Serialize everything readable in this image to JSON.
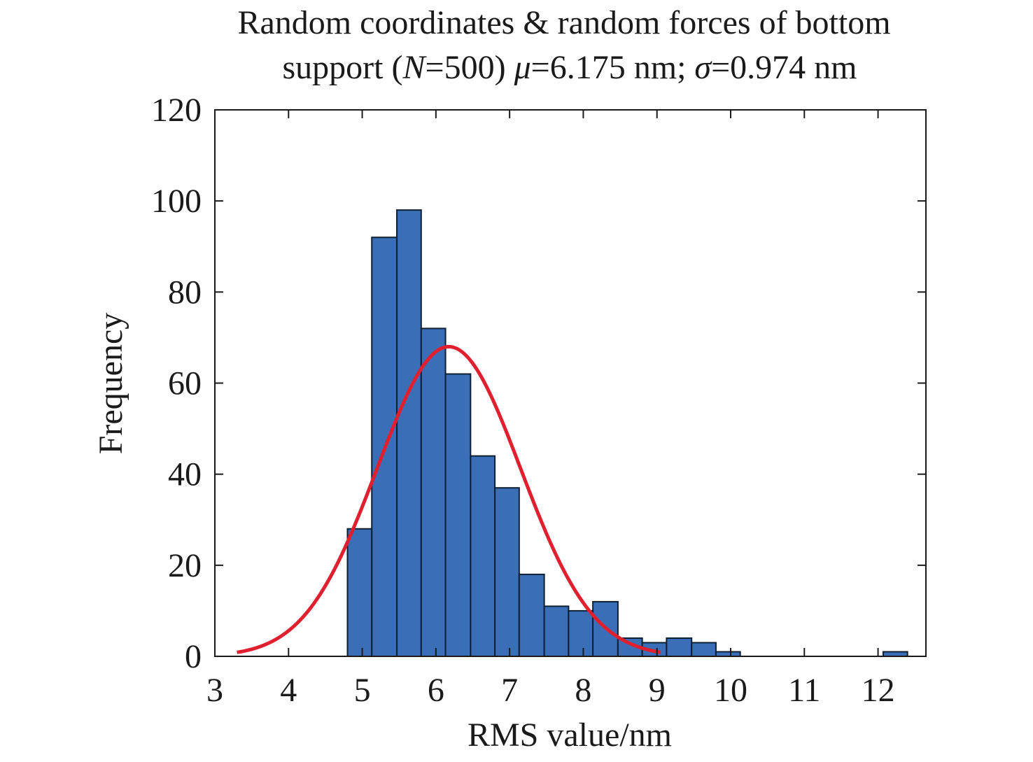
{
  "chart_data": {
    "type": "bar",
    "title_line1": "Random coordinates & random forces of bottom",
    "title_line2_parts": [
      {
        "text": "support (",
        "italic": false
      },
      {
        "text": "N",
        "italic": true
      },
      {
        "text": "=500) ",
        "italic": false
      },
      {
        "text": "μ",
        "italic": true
      },
      {
        "text": "=6.175 nm; ",
        "italic": false
      },
      {
        "text": "σ",
        "italic": true
      },
      {
        "text": "=0.974 nm",
        "italic": false
      }
    ],
    "xlabel": "RMS value/nm",
    "ylabel": "Frequency",
    "xlim": [
      3,
      12.65
    ],
    "ylim": [
      0,
      120
    ],
    "xticks": [
      3,
      4,
      5,
      6,
      7,
      8,
      9,
      10,
      11,
      12
    ],
    "yticks": [
      0,
      20,
      40,
      60,
      80,
      100,
      120
    ],
    "grid": false,
    "bar_color": "#3a6fb8",
    "bar_edge_color": "#0f1f33",
    "curve_color": "#e0202e",
    "histogram": [
      {
        "x0": 4.8,
        "x1": 5.13,
        "value": 28
      },
      {
        "x0": 5.13,
        "x1": 5.47,
        "value": 92
      },
      {
        "x0": 5.47,
        "x1": 5.8,
        "value": 98
      },
      {
        "x0": 5.8,
        "x1": 6.13,
        "value": 72
      },
      {
        "x0": 6.13,
        "x1": 6.47,
        "value": 62
      },
      {
        "x0": 6.47,
        "x1": 6.8,
        "value": 44
      },
      {
        "x0": 6.8,
        "x1": 7.13,
        "value": 37
      },
      {
        "x0": 7.13,
        "x1": 7.47,
        "value": 18
      },
      {
        "x0": 7.47,
        "x1": 7.8,
        "value": 11
      },
      {
        "x0": 7.8,
        "x1": 8.13,
        "value": 10
      },
      {
        "x0": 8.13,
        "x1": 8.47,
        "value": 12
      },
      {
        "x0": 8.47,
        "x1": 8.8,
        "value": 4
      },
      {
        "x0": 8.8,
        "x1": 9.13,
        "value": 3
      },
      {
        "x0": 9.13,
        "x1": 9.47,
        "value": 4
      },
      {
        "x0": 9.47,
        "x1": 9.8,
        "value": 3
      },
      {
        "x0": 9.8,
        "x1": 10.13,
        "value": 1
      },
      {
        "x0": 12.07,
        "x1": 12.4,
        "value": 1
      }
    ],
    "normal_fit": {
      "mean": 6.175,
      "std": 0.974,
      "peak": 68,
      "x_range": [
        3.3,
        9.05
      ]
    }
  }
}
